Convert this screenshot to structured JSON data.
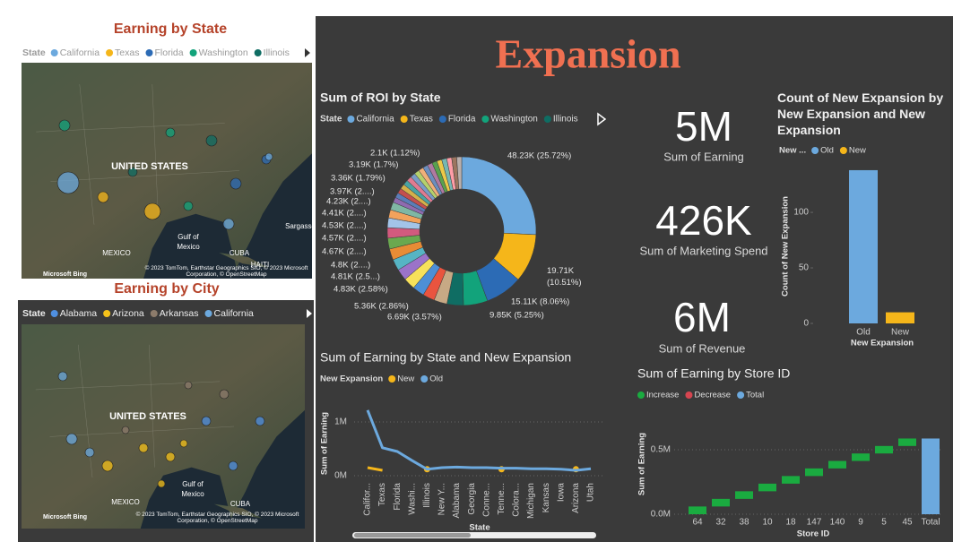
{
  "title": "Expansion",
  "maps": [
    {
      "title": "Earning by State",
      "legend_title": "State",
      "legend": [
        {
          "name": "California",
          "color": "#6CA9DE"
        },
        {
          "name": "Texas",
          "color": "#F5B61A"
        },
        {
          "name": "Florida",
          "color": "#2C6BB5"
        },
        {
          "name": "Washington",
          "color": "#12A37B"
        },
        {
          "name": "Illinois",
          "color": "#0F6D63"
        }
      ],
      "labels": [
        "UNITED STATES",
        "Gulf of",
        "Mexico",
        "MEXICO",
        "CUBA",
        "HAITI",
        "Sargasso"
      ],
      "provider": "Microsoft Bing",
      "attribution": "© 2023 TomTom, Earthstar Geographics SIO, © 2023 Microsoft Corporation, © OpenStreetMap"
    },
    {
      "title": "Earning by City",
      "legend_title": "State",
      "legend": [
        {
          "name": "Alabama",
          "color": "#4F8FE0"
        },
        {
          "name": "Arizona",
          "color": "#F5C21A"
        },
        {
          "name": "Arkansas",
          "color": "#8C7B6B"
        },
        {
          "name": "California",
          "color": "#6CA9DE"
        }
      ],
      "labels": [
        "UNITED STATES",
        "Gulf of",
        "Mexico",
        "MEXICO",
        "CUBA"
      ],
      "provider": "Microsoft Bing",
      "attribution": "© 2023 TomTom, Earthstar Geographics SIO, © 2023 Microsoft Corporation, © OpenStreetMap"
    }
  ],
  "cards": [
    {
      "value": "5M",
      "label": "Sum of Earning"
    },
    {
      "value": "426K",
      "label": "Sum of Marketing Spend"
    },
    {
      "value": "6M",
      "label": "Sum of Revenue"
    }
  ],
  "chart_data": [
    {
      "type": "donut",
      "title": "Sum of ROI by State",
      "legend_title": "State",
      "categories": [
        "California",
        "Texas",
        "Florida",
        "Washington",
        "Illinois",
        null,
        null,
        null,
        null,
        null,
        null,
        null,
        null,
        null,
        null,
        null,
        null,
        null,
        null,
        null,
        null,
        null,
        null,
        null,
        null,
        null,
        null,
        null,
        null,
        null,
        null,
        null,
        null,
        null
      ],
      "colors": [
        "#6CA9DE",
        "#F5B61A",
        "#2C6BB5",
        "#12A37B",
        "#0F6D63",
        "#C7A985",
        "#E9543F",
        "#4D8FD6",
        "#F7E15A",
        "#9B73C9",
        "#56B4C4",
        "#E88C35",
        "#6AA84F",
        "#D25A7E",
        "#A3C4E8",
        "#F2A25C",
        "#7FB7A4",
        "#8F6BB0",
        "#5B7DB8",
        "#C44F4F",
        "#D4B04A",
        "#4AA3A3",
        "#E07B91",
        "#7A9CC6",
        "#B5D16C",
        "#F0B07A",
        "#6C8EBF",
        "#B07AA1",
        "#59A14F",
        "#EDC948",
        "#76B7B2",
        "#FF9DA7",
        "#9C755F",
        "#BAB0AC"
      ],
      "values": [
        48230,
        19710,
        15110,
        9850,
        6690,
        5360,
        4830,
        4810,
        4800,
        4670,
        4570,
        4530,
        4410,
        4230,
        3970,
        3360,
        3190,
        2100,
        2080,
        2070,
        2070,
        2060,
        2060,
        2060,
        2050,
        2050,
        2050,
        2050,
        2040,
        2040,
        2040,
        2030,
        2030,
        2020
      ],
      "value_labels": [
        "48.23K (25.72%)",
        "19.71K (10.51%)",
        "15.11K (8.06%)",
        "9.85K (5.25%)",
        "6.69K (3.57%)",
        "5.36K (2.86%)",
        "4.83K (2.58%)",
        "4.81K (2.5...)",
        "4.8K (2....)",
        "4.67K (2....)",
        "4.57K (2....)",
        "4.53K (2....)",
        "4.41K (2....)",
        "4.23K (2....)",
        "3.97K (2....)",
        "3.36K (1.79%)",
        "3.19K (1.7%)",
        "2.1K (1.12%)",
        null,
        null,
        null,
        null,
        null,
        null,
        null,
        null,
        null,
        null,
        null,
        null,
        null,
        null,
        null,
        null
      ]
    },
    {
      "type": "line",
      "title": "Sum of Earning by State and New Expansion",
      "legend_title": "New Expansion",
      "categories": [
        "Califor...",
        "Texas",
        "Florida",
        "Washi...",
        "Illinois",
        "New Y...",
        "Alabama",
        "Georgia",
        "Conne...",
        "Tenne...",
        "Colora...",
        "Michigan",
        "Kansas",
        "Iowa",
        "Arizona",
        "Utah"
      ],
      "series": [
        {
          "name": "New",
          "color": "#F5B61A",
          "values": [
            150000,
            100000,
            null,
            null,
            120000,
            null,
            null,
            null,
            null,
            120000,
            null,
            null,
            null,
            null,
            120000,
            null
          ]
        },
        {
          "name": "Old",
          "color": "#6CA9DE",
          "values": [
            1220000,
            520000,
            450000,
            280000,
            120000,
            150000,
            160000,
            150000,
            150000,
            140000,
            140000,
            130000,
            130000,
            120000,
            100000,
            130000
          ]
        }
      ],
      "xlabel": "State",
      "ylabel": "Sum of Earning",
      "ylim": [
        -150000,
        1300000
      ],
      "yticks": [
        {
          "value": 0,
          "label": "0M"
        },
        {
          "value": 1000000,
          "label": "1M"
        }
      ]
    },
    {
      "type": "bar",
      "title": "Count of New Expansion by New Expansion and New Expansion",
      "legend_title": "New ...",
      "categories": [
        "Old",
        "New"
      ],
      "colors": [
        "#6CA9DE",
        "#F5B61A"
      ],
      "values": [
        138,
        10
      ],
      "xlabel": "New Expansion",
      "ylabel": "Count of New Expansion",
      "ylim": [
        0,
        142
      ],
      "yticks": [
        0,
        50,
        100
      ]
    },
    {
      "type": "waterfall",
      "title": "Sum of Earning by Store ID",
      "legend": [
        {
          "name": "Increase",
          "color": "#1AAB40"
        },
        {
          "name": "Decrease",
          "color": "#D64550"
        },
        {
          "name": "Total",
          "color": "#6CA9DE"
        }
      ],
      "categories": [
        "64",
        "32",
        "38",
        "10",
        "18",
        "147",
        "140",
        "9",
        "5",
        "45"
      ],
      "values": [
        60000,
        59000,
        59000,
        59000,
        59000,
        59000,
        58000,
        58000,
        58000,
        58000
      ],
      "total_label": "Total",
      "total": 587000,
      "xlabel": "Store ID",
      "ylabel": "Sum of Earning",
      "ylim": [
        -50000,
        700000
      ],
      "yticks": [
        {
          "value": 0,
          "label": "0.0M"
        },
        {
          "value": 500000,
          "label": "0.5M"
        }
      ]
    }
  ]
}
